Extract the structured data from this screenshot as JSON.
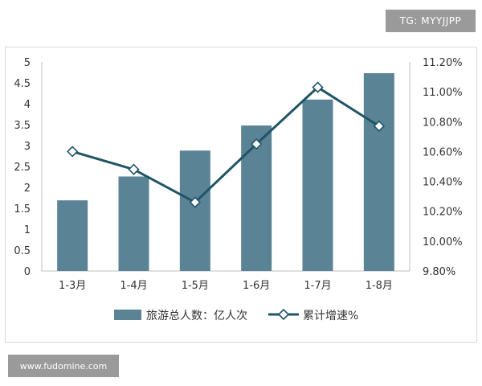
{
  "watermarks": {
    "top": "TG: MYYJJPP",
    "bottom": "www.fudomine.com"
  },
  "chart_data": {
    "type": "bar",
    "title": "",
    "categories": [
      "1-3月",
      "1-4月",
      "1-5月",
      "1-6月",
      "1-7月",
      "1-8月"
    ],
    "series": [
      {
        "name": "旅游总人数：亿人次",
        "type": "bar",
        "axis": "left",
        "color": "#5b8396",
        "values": [
          1.69,
          2.26,
          2.88,
          3.48,
          4.1,
          4.73
        ]
      },
      {
        "name": "累计增速%",
        "type": "line",
        "axis": "right",
        "color": "#1f5566",
        "values": [
          10.6,
          10.48,
          10.26,
          10.65,
          11.03,
          10.77
        ]
      }
    ],
    "y_left": {
      "min": 0,
      "max": 5,
      "step": 0.5,
      "ticks": [
        "0",
        "0.5",
        "1",
        "1.5",
        "2",
        "2.5",
        "3",
        "3.5",
        "4",
        "4.5",
        "5"
      ]
    },
    "y_right": {
      "min": 9.8,
      "max": 11.2,
      "step": 0.2,
      "ticks": [
        "9.80%",
        "10.00%",
        "10.20%",
        "10.40%",
        "10.60%",
        "10.80%",
        "11.00%",
        "11.20%"
      ]
    },
    "legend_position": "bottom",
    "grid": false
  }
}
